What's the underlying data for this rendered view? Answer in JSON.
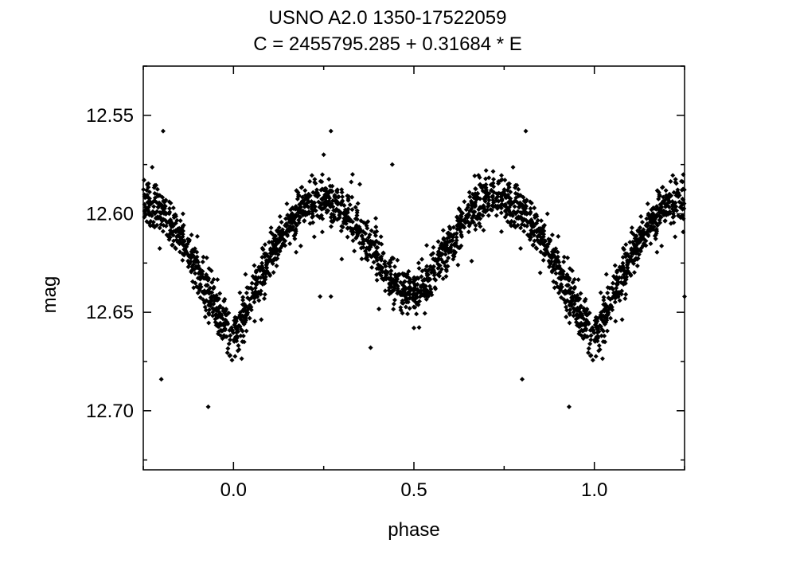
{
  "chart_data": {
    "type": "scatter",
    "title": "USNO A2.0 1350-17522059",
    "subtitle": "C = 2455795.285 + 0.31684 * E",
    "xlabel": "phase",
    "ylabel": "mag",
    "xlim": [
      -0.25,
      1.25
    ],
    "ylim": [
      12.73,
      12.52
    ],
    "y_inverted": true,
    "grid": false,
    "x_ticks": [
      {
        "value": 0.0,
        "label": "0.0"
      },
      {
        "value": 0.5,
        "label": "0.5"
      },
      {
        "value": 1.0,
        "label": "1.0"
      }
    ],
    "x_minor_ticks": [
      -0.25,
      0.25,
      0.75,
      1.25
    ],
    "y_ticks": [
      {
        "value": 12.55,
        "label": "12.55"
      },
      {
        "value": 12.6,
        "label": "12.60"
      },
      {
        "value": 12.65,
        "label": "12.65"
      },
      {
        "value": 12.7,
        "label": "12.70"
      }
    ],
    "y_minor_ticks": [
      12.525,
      12.575,
      12.625,
      12.675,
      12.725
    ],
    "series": [
      {
        "marker": "diamond",
        "color": "#000000",
        "light_curve_shape": {
          "description_period": "phased light curve, repeated over phase -0.25 to 1.25",
          "phase_points": [
            [
              0.0,
              12.66
            ],
            [
              0.02,
              12.655
            ],
            [
              0.05,
              12.643
            ],
            [
              0.08,
              12.63
            ],
            [
              0.1,
              12.622
            ],
            [
              0.13,
              12.612
            ],
            [
              0.16,
              12.604
            ],
            [
              0.19,
              12.598
            ],
            [
              0.22,
              12.594
            ],
            [
              0.25,
              12.592
            ],
            [
              0.28,
              12.594
            ],
            [
              0.31,
              12.6
            ],
            [
              0.34,
              12.607
            ],
            [
              0.37,
              12.615
            ],
            [
              0.4,
              12.622
            ],
            [
              0.43,
              12.63
            ],
            [
              0.46,
              12.637
            ],
            [
              0.48,
              12.642
            ],
            [
              0.5,
              12.643
            ],
            [
              0.52,
              12.638
            ],
            [
              0.55,
              12.63
            ],
            [
              0.58,
              12.622
            ],
            [
              0.61,
              12.612
            ],
            [
              0.64,
              12.603
            ],
            [
              0.67,
              12.596
            ],
            [
              0.7,
              12.592
            ],
            [
              0.73,
              12.591
            ],
            [
              0.76,
              12.594
            ],
            [
              0.79,
              12.598
            ],
            [
              0.82,
              12.603
            ],
            [
              0.85,
              12.611
            ],
            [
              0.88,
              12.621
            ],
            [
              0.91,
              12.632
            ],
            [
              0.94,
              12.643
            ],
            [
              0.97,
              12.655
            ],
            [
              1.0,
              12.66
            ]
          ],
          "scatter_sigma": 0.006,
          "n_points_per_cycle": 1600
        },
        "outliers": [
          {
            "x": -0.2,
            "y": 12.684
          },
          {
            "x": -0.195,
            "y": 12.558
          },
          {
            "x": -0.07,
            "y": 12.698
          },
          {
            "x": -0.14,
            "y": 12.6
          },
          {
            "x": 0.27,
            "y": 12.558
          },
          {
            "x": 0.25,
            "y": 12.57
          },
          {
            "x": 0.24,
            "y": 12.642
          },
          {
            "x": 0.27,
            "y": 12.642
          },
          {
            "x": 0.3,
            "y": 12.623
          },
          {
            "x": 0.38,
            "y": 12.668
          },
          {
            "x": 0.33,
            "y": 12.58
          },
          {
            "x": 0.35,
            "y": 12.585
          },
          {
            "x": 0.44,
            "y": 12.575
          },
          {
            "x": 0.48,
            "y": 12.632
          },
          {
            "x": 0.5,
            "y": 12.658
          },
          {
            "x": 0.8,
            "y": 12.684
          },
          {
            "x": 0.81,
            "y": 12.558
          },
          {
            "x": 0.93,
            "y": 12.698
          },
          {
            "x": 0.87,
            "y": 12.6
          },
          {
            "x": 1.15,
            "y": 12.6
          },
          {
            "x": 1.25,
            "y": 12.642
          },
          {
            "x": 0.66,
            "y": 12.624
          },
          {
            "x": 0.63,
            "y": 12.607
          },
          {
            "x": 0.7,
            "y": 12.578
          },
          {
            "x": 0.85,
            "y": 12.63
          }
        ]
      }
    ]
  }
}
